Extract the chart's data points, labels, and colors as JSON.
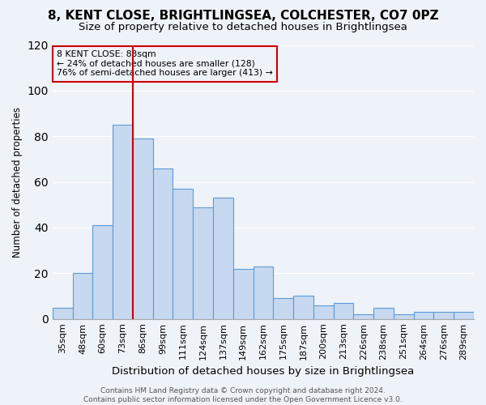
{
  "title": "8, KENT CLOSE, BRIGHTLINGSEA, COLCHESTER, CO7 0PZ",
  "subtitle": "Size of property relative to detached houses in Brightlingsea",
  "xlabel": "Distribution of detached houses by size in Brightlingsea",
  "ylabel": "Number of detached properties",
  "categories": [
    "35sqm",
    "48sqm",
    "60sqm",
    "73sqm",
    "86sqm",
    "99sqm",
    "111sqm",
    "124sqm",
    "137sqm",
    "149sqm",
    "162sqm",
    "175sqm",
    "187sqm",
    "200sqm",
    "213sqm",
    "226sqm",
    "238sqm",
    "251sqm",
    "264sqm",
    "276sqm",
    "289sqm"
  ],
  "values": [
    5,
    20,
    41,
    85,
    79,
    66,
    57,
    49,
    53,
    22,
    23,
    9,
    10,
    6,
    7,
    2,
    5,
    2,
    3,
    3,
    3
  ],
  "bar_color": "#c6d9f0",
  "bar_edge_color": "#5b9bd5",
  "vline_color": "#cc0000",
  "vline_index": 3.5,
  "ylim": [
    0,
    120
  ],
  "yticks": [
    0,
    20,
    40,
    60,
    80,
    100,
    120
  ],
  "annotation_title": "8 KENT CLOSE: 83sqm",
  "annotation_line1": "← 24% of detached houses are smaller (128)",
  "annotation_line2": "76% of semi-detached houses are larger (413) →",
  "annotation_box_edgecolor": "#cc0000",
  "footer_line1": "Contains HM Land Registry data © Crown copyright and database right 2024.",
  "footer_line2": "Contains public sector information licensed under the Open Government Licence v3.0.",
  "background_color": "#eef2f9",
  "grid_color": "#ffffff",
  "title_fontsize": 11,
  "subtitle_fontsize": 9.5,
  "xlabel_fontsize": 9.5,
  "ylabel_fontsize": 8.5,
  "tick_fontsize": 8,
  "footer_fontsize": 6.5
}
